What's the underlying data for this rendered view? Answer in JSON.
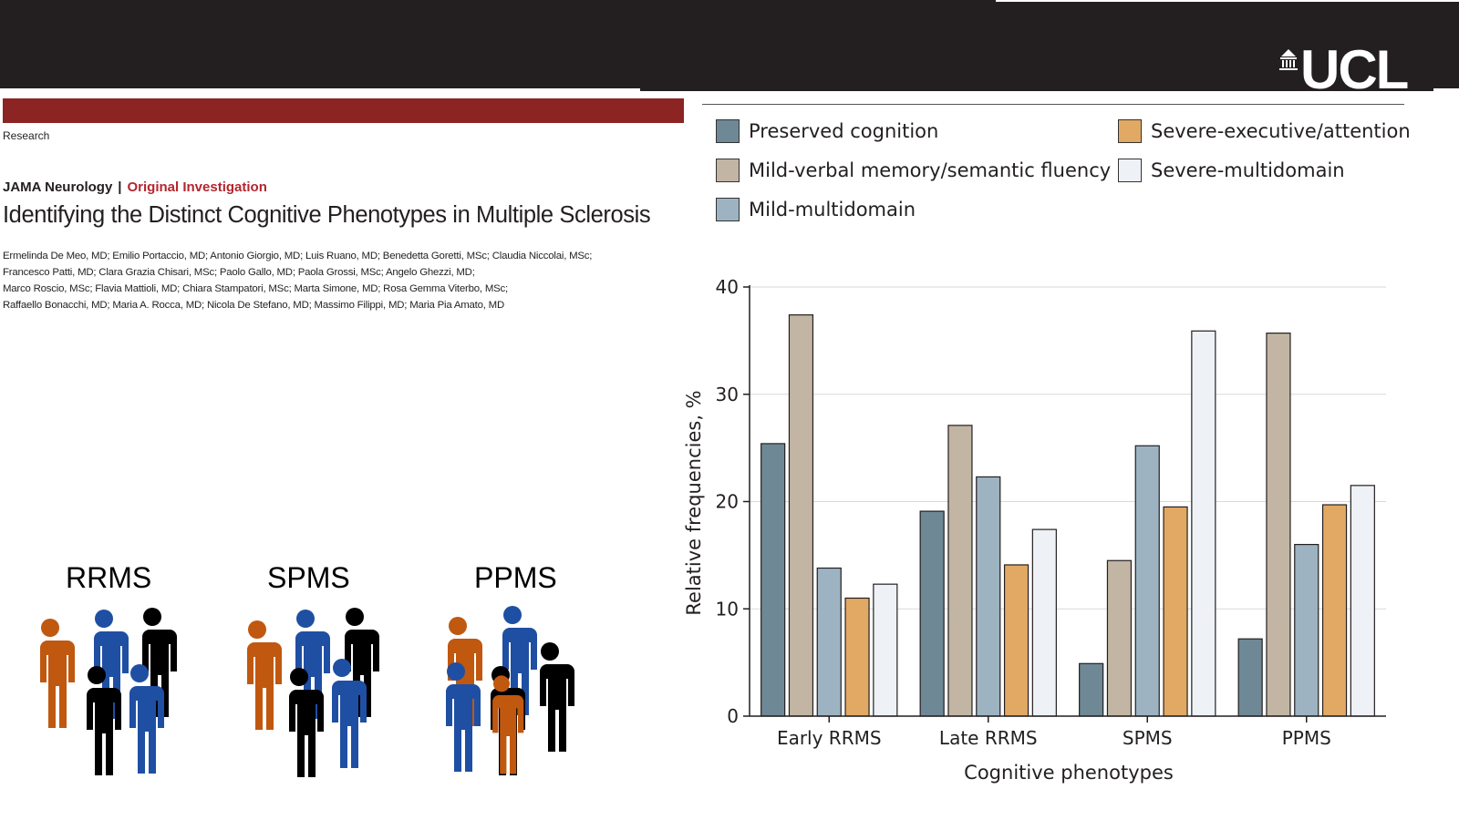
{
  "header": {
    "logo_text": "UCL"
  },
  "article": {
    "section": "Research",
    "journal": "JAMA Neurology",
    "separator": "|",
    "article_type": "Original Investigation",
    "title": "Identifying the Distinct Cognitive Phenotypes in Multiple Sclerosis",
    "authors": [
      "Ermelinda De Meo, MD; Emilio Portaccio, MD; Antonio Giorgio, MD; Luis Ruano, MD; Benedetta Goretti, MSc; Claudia Niccolai, MSc;",
      "Francesco Patti, MD; Clara Grazia Chisari, MSc; Paolo Gallo, MD; Paola Grossi, MSc; Angelo Ghezzi, MD;",
      "Marco Roscio, MSc; Flavia Mattioli, MD; Chiara Stampatori, MSc; Marta Simone, MD; Rosa Gemma Viterbo, MSc;",
      "Raffaello Bonacchi, MD; Maria A. Rocca, MD; Nicola De Stefano, MD; Massimo Filippi, MD; Maria Pia Amato, MD"
    ]
  },
  "groups": [
    {
      "label": "RRMS"
    },
    {
      "label": "SPMS"
    },
    {
      "label": "PPMS"
    }
  ],
  "colors": {
    "orange": "#c0580f",
    "blue": "#1f4fa3",
    "black": "#000000",
    "journal_red": "#8b2423"
  },
  "chart_data": {
    "type": "bar",
    "xlabel": "Cognitive phenotypes",
    "ylabel": "Relative frequencies, %",
    "ylim": [
      0,
      40
    ],
    "yticks": [
      0,
      10,
      20,
      30,
      40
    ],
    "grid": true,
    "legend_position": "top",
    "categories": [
      "Early RRMS",
      "Late RRMS",
      "SPMS",
      "PPMS"
    ],
    "series": [
      {
        "name": "Preserved cognition",
        "color": "#6e8896",
        "values": [
          25.4,
          19.1,
          4.9,
          7.2
        ]
      },
      {
        "name": "Mild-verbal memory/semantic fluency",
        "color": "#c2b5a3",
        "values": [
          37.4,
          27.1,
          14.5,
          35.7
        ]
      },
      {
        "name": "Mild-multidomain",
        "color": "#9db3c1",
        "values": [
          13.8,
          22.3,
          25.2,
          16.0
        ]
      },
      {
        "name": "Severe-executive/attention",
        "color": "#e1a964",
        "values": [
          11.0,
          14.1,
          19.5,
          19.7
        ]
      },
      {
        "name": "Severe-multidomain",
        "color": "#eef1f5",
        "values": [
          12.3,
          17.4,
          35.9,
          21.5
        ]
      }
    ]
  }
}
